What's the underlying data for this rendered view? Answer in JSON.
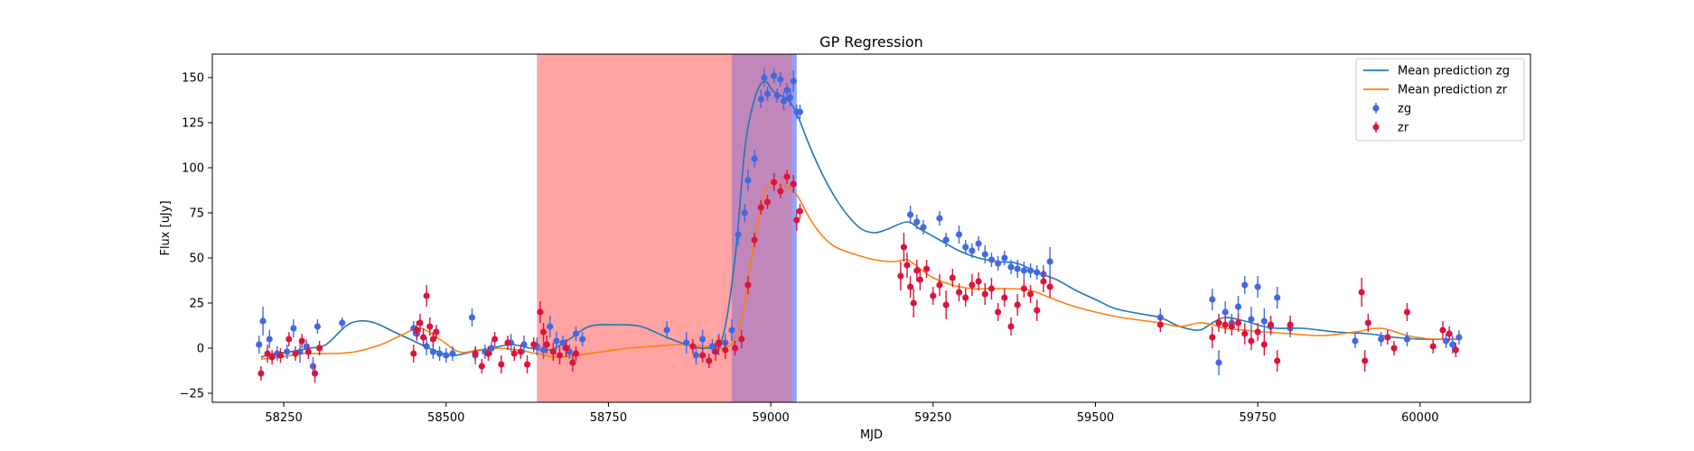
{
  "chart_data": {
    "type": "scatter",
    "title": "GP Regression",
    "xlabel": "MJD",
    "ylabel": "Flux [uJy]",
    "xlim": [
      58140,
      60170
    ],
    "ylim": [
      -30,
      163
    ],
    "xticks": [
      58250,
      58500,
      58750,
      59000,
      59250,
      59500,
      59750,
      60000
    ],
    "yticks": [
      -25,
      0,
      25,
      50,
      75,
      100,
      125,
      150
    ],
    "grid": false,
    "legend_position": "top-right",
    "shaded_regions": [
      {
        "x0": 58640,
        "x1": 58940,
        "color": "#ff6666",
        "alpha": 0.6
      },
      {
        "x0": 58940,
        "x1": 59040,
        "color": "#4466ff",
        "alpha": 0.6
      },
      {
        "x0": 58940,
        "x1": 59033,
        "color": "#ff6666",
        "alpha": 0.45
      }
    ],
    "series": [
      {
        "name": "Mean prediction zg",
        "kind": "line",
        "color": "#1f77b4",
        "x": [
          58215,
          58235,
          58260,
          58290,
          58315,
          58345,
          58365,
          58390,
          58420,
          58450,
          58480,
          58510,
          58540,
          58570,
          58600,
          58630,
          58660,
          58690,
          58720,
          58760,
          58800,
          58840,
          58870,
          58900,
          58925,
          58945,
          58960,
          58975,
          58990,
          59005,
          59025,
          59040,
          59060,
          59080,
          59100,
          59120,
          59140,
          59160,
          59180,
          59210,
          59230,
          59260,
          59290,
          59320,
          59350,
          59380,
          59410,
          59440,
          59470,
          59500,
          59530,
          59570,
          59600,
          59630,
          59660,
          59680,
          59700,
          59730,
          59760,
          59780,
          59820,
          59870,
          59920,
          59960,
          60000,
          60030,
          60060
        ],
        "y": [
          -5,
          -3,
          -2,
          0,
          2,
          12,
          15,
          14,
          9,
          4,
          -1,
          -4,
          -2,
          0,
          2,
          0,
          -1,
          5,
          12,
          13,
          12,
          6,
          2,
          0,
          5,
          50,
          110,
          138,
          148,
          142,
          138,
          130,
          112,
          96,
          83,
          73,
          66,
          64,
          66,
          70,
          66,
          60,
          54,
          50,
          48,
          47,
          42,
          38,
          32,
          27,
          22,
          19,
          17,
          12,
          10,
          14,
          17,
          15,
          12,
          11,
          11,
          9,
          8,
          6,
          5,
          5,
          5
        ]
      },
      {
        "name": "Mean prediction zr",
        "kind": "line",
        "color": "#ff7f0e",
        "x": [
          58215,
          58245,
          58280,
          58320,
          58360,
          58400,
          58430,
          58460,
          58490,
          58520,
          58550,
          58580,
          58610,
          58640,
          58670,
          58700,
          58740,
          58780,
          58820,
          58860,
          58900,
          58925,
          58945,
          58960,
          58975,
          58990,
          59005,
          59020,
          59040,
          59060,
          59080,
          59100,
          59130,
          59160,
          59190,
          59210,
          59230,
          59250,
          59280,
          59310,
          59340,
          59370,
          59400,
          59430,
          59460,
          59500,
          59540,
          59580,
          59600,
          59630,
          59660,
          59680,
          59700,
          59730,
          59760,
          59800,
          59850,
          59900,
          59940,
          59980,
          60020,
          60060
        ],
        "y": [
          -6,
          -5,
          -3,
          -3,
          -2,
          2,
          7,
          11,
          5,
          -2,
          -1,
          0,
          -1,
          -3,
          -5,
          -4,
          -2,
          0,
          1,
          2,
          1,
          0,
          5,
          25,
          60,
          85,
          92,
          90,
          85,
          72,
          62,
          56,
          52,
          49,
          48,
          49,
          44,
          39,
          35,
          33,
          33,
          33,
          32,
          28,
          24,
          20,
          17,
          15,
          14,
          12,
          14,
          13,
          11,
          10,
          9,
          8,
          7,
          9,
          11,
          7,
          5,
          5
        ]
      },
      {
        "name": "zg",
        "kind": "errorbar",
        "color": "#4169e1",
        "x": [
          58212,
          58218,
          58228,
          58240,
          58255,
          58265,
          58275,
          58285,
          58295,
          58302,
          58340,
          58450,
          58455,
          58470,
          58480,
          58490,
          58500,
          58510,
          58540,
          58545,
          58560,
          58570,
          58600,
          58620,
          58640,
          58650,
          58660,
          58670,
          58680,
          58690,
          58700,
          58710,
          58840,
          58870,
          58885,
          58895,
          58910,
          58920,
          58930,
          58940,
          58950,
          58960,
          58965,
          58975,
          58985,
          58990,
          58995,
          59005,
          59010,
          59015,
          59020,
          59025,
          59030,
          59035,
          59040,
          59045,
          59215,
          59225,
          59235,
          59260,
          59270,
          59290,
          59300,
          59310,
          59320,
          59330,
          59340,
          59350,
          59360,
          59370,
          59380,
          59390,
          59400,
          59410,
          59420,
          59430,
          59600,
          59680,
          59690,
          59700,
          59710,
          59720,
          59730,
          59740,
          59750,
          59760,
          59770,
          59780,
          59800,
          59900,
          59940,
          59980,
          60040,
          60050,
          60060
        ],
        "y": [
          2,
          15,
          5,
          -3,
          -2,
          11,
          -2,
          1,
          -10,
          12,
          14,
          11,
          8,
          1,
          -2,
          -3,
          -4,
          -3,
          17,
          -4,
          -2,
          0,
          3,
          2,
          1,
          -1,
          12,
          4,
          3,
          -2,
          8,
          5,
          10,
          3,
          -4,
          5,
          1,
          2,
          3,
          10,
          63,
          75,
          93,
          105,
          138,
          150,
          141,
          151,
          140,
          149,
          137,
          143,
          139,
          148,
          131,
          131,
          74,
          70,
          67,
          72,
          60,
          63,
          56,
          54,
          58,
          52,
          49,
          47,
          50,
          45,
          44,
          43,
          43,
          42,
          41,
          48,
          17,
          27,
          -8,
          20,
          14,
          23,
          35,
          16,
          34,
          15,
          12,
          28,
          11,
          4,
          5,
          5,
          4,
          2,
          6
        ],
        "err": [
          5,
          8,
          5,
          4,
          4,
          5,
          6,
          4,
          5,
          4,
          3,
          4,
          4,
          5,
          4,
          4,
          4,
          4,
          5,
          5,
          4,
          4,
          5,
          5,
          5,
          5,
          6,
          5,
          4,
          4,
          4,
          4,
          5,
          6,
          5,
          5,
          4,
          6,
          5,
          6,
          6,
          5,
          6,
          5,
          5,
          5,
          4,
          4,
          4,
          4,
          5,
          4,
          5,
          6,
          4,
          4,
          5,
          4,
          4,
          4,
          4,
          5,
          4,
          4,
          4,
          5,
          4,
          4,
          4,
          4,
          5,
          5,
          4,
          4,
          5,
          8,
          5,
          6,
          7,
          6,
          5,
          6,
          5,
          7,
          6,
          7,
          5,
          6,
          5,
          4,
          4,
          4,
          4,
          5,
          4
        ]
      },
      {
        "name": "zr",
        "kind": "errorbar",
        "color": "#dc143c",
        "x": [
          58215,
          58225,
          58232,
          58245,
          58258,
          58268,
          58278,
          58288,
          58298,
          58305,
          58450,
          58455,
          58460,
          58465,
          58470,
          58475,
          58480,
          58485,
          58545,
          58555,
          58565,
          58575,
          58585,
          58595,
          58605,
          58615,
          58625,
          58635,
          58645,
          58650,
          58655,
          58665,
          58675,
          58685,
          58695,
          58700,
          58880,
          58895,
          58905,
          58915,
          58920,
          58930,
          58945,
          58955,
          58965,
          58975,
          58985,
          58995,
          59005,
          59015,
          59025,
          59035,
          59040,
          59045,
          59200,
          59205,
          59210,
          59215,
          59220,
          59225,
          59230,
          59240,
          59250,
          59260,
          59270,
          59280,
          59290,
          59300,
          59310,
          59320,
          59330,
          59340,
          59350,
          59360,
          59370,
          59380,
          59390,
          59400,
          59410,
          59420,
          59430,
          59600,
          59680,
          59690,
          59700,
          59710,
          59720,
          59730,
          59740,
          59750,
          59760,
          59770,
          59780,
          59800,
          59910,
          59915,
          59920,
          59950,
          59960,
          59980,
          60020,
          60035,
          60045,
          60055
        ],
        "y": [
          -14,
          -3,
          -5,
          -4,
          5,
          -3,
          4,
          -2,
          -14,
          0,
          -3,
          10,
          14,
          6,
          29,
          12,
          5,
          9,
          -3,
          -10,
          -3,
          5,
          -9,
          3,
          -3,
          -2,
          -9,
          2,
          20,
          9,
          2,
          -2,
          -4,
          0,
          -8,
          -3,
          1,
          -4,
          -7,
          -2,
          3,
          -1,
          0,
          5,
          35,
          60,
          78,
          81,
          92,
          87,
          95,
          91,
          71,
          76,
          40,
          56,
          46,
          34,
          25,
          43,
          38,
          44,
          29,
          35,
          24,
          39,
          31,
          28,
          35,
          37,
          30,
          33,
          20,
          28,
          12,
          24,
          33,
          30,
          21,
          37,
          34,
          13,
          6,
          14,
          13,
          12,
          14,
          8,
          4,
          9,
          2,
          13,
          -7,
          13,
          31,
          -7,
          14,
          6,
          0,
          20,
          1,
          10,
          8,
          -1
        ],
        "err": [
          4,
          5,
          4,
          4,
          4,
          4,
          4,
          4,
          5,
          4,
          5,
          5,
          5,
          5,
          6,
          5,
          4,
          4,
          4,
          4,
          4,
          4,
          5,
          4,
          4,
          4,
          5,
          4,
          6,
          5,
          5,
          5,
          5,
          5,
          5,
          4,
          4,
          4,
          4,
          5,
          4,
          5,
          4,
          5,
          5,
          4,
          4,
          4,
          5,
          4,
          4,
          5,
          6,
          4,
          8,
          8,
          7,
          6,
          8,
          6,
          6,
          5,
          5,
          6,
          8,
          5,
          5,
          5,
          6,
          5,
          6,
          6,
          5,
          5,
          5,
          6,
          5,
          5,
          6,
          6,
          6,
          4,
          6,
          5,
          5,
          5,
          5,
          6,
          5,
          5,
          6,
          5,
          6,
          5,
          8,
          6,
          5,
          4,
          4,
          5,
          4,
          5,
          4,
          4
        ]
      }
    ]
  }
}
